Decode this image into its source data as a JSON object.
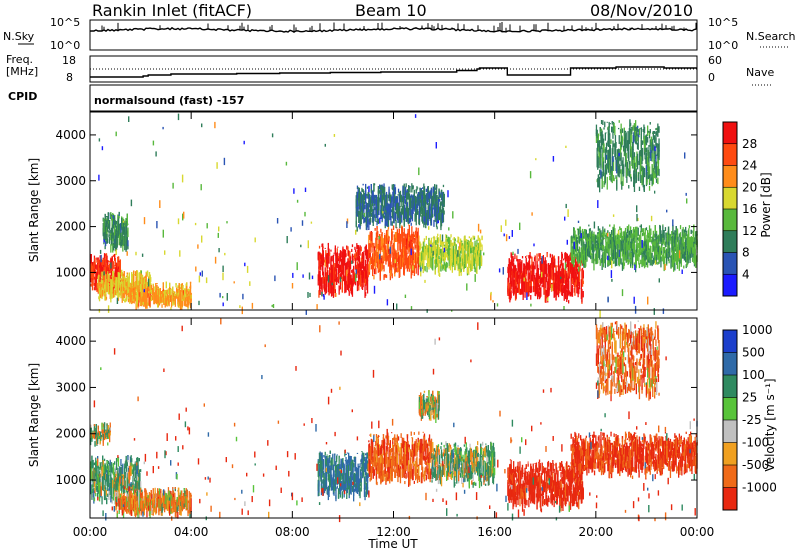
{
  "header": {
    "title": "Rankin Inlet (fitACF)",
    "beam": "Beam 10",
    "date": "08/Nov/2010"
  },
  "sky_panel": {
    "left_label": "N.Sky",
    "left_ticks": [
      "10^5",
      "10^0"
    ],
    "right_label": "N.Search",
    "right_ticks": [
      "10^5",
      "10^0"
    ]
  },
  "freq_panel": {
    "left_label_1": "Freq.",
    "left_label_2": "[MHz]",
    "left_ticks": [
      "18",
      "8"
    ],
    "right_label": "Nave",
    "right_ticks": [
      "60",
      "0"
    ]
  },
  "cpid": {
    "label": "CPID",
    "mode_text": "normalsound (fast) -157"
  },
  "xaxis": {
    "title": "Time UT",
    "ticks": [
      "00:00",
      "04:00",
      "08:00",
      "12:00",
      "16:00",
      "20:00",
      "00:00"
    ]
  },
  "power_panel": {
    "ylabel": "Slant Range [km]",
    "yticks": [
      "1000",
      "2000",
      "3000",
      "4000"
    ],
    "colorbar_title": "Power [dB]",
    "colorbar_ticks": [
      "4",
      "8",
      "12",
      "16",
      "20",
      "24",
      "28"
    ],
    "colorbar_colors": [
      "#1c1cff",
      "#2a54b4",
      "#2f7d5a",
      "#58b83c",
      "#d8d830",
      "#ff8c1a",
      "#ff4a10",
      "#f01010"
    ]
  },
  "velocity_panel": {
    "ylabel": "Slant Range [km]",
    "yticks": [
      "1000",
      "2000",
      "3000",
      "4000"
    ],
    "colorbar_title": "Velocity [m s⁻¹]",
    "colorbar_ticks": [
      "1000",
      "500",
      "100",
      "25",
      "-25",
      "-100",
      "-500",
      "-1000"
    ],
    "colorbar_colors": [
      "#1c3fcc",
      "#2f6aa8",
      "#2f8a60",
      "#58c43a",
      "#c0c0c0",
      "#f0a020",
      "#f06a18",
      "#e82810"
    ]
  },
  "chart_data": [
    {
      "type": "heatmap",
      "title": "Power [dB]",
      "xlabel": "Time UT",
      "ylabel": "Slant Range [km]",
      "x_range_hours": [
        0,
        24
      ],
      "y_range_km": [
        180,
        4500
      ],
      "color_range": [
        0,
        30
      ],
      "grid": false,
      "regions": [
        {
          "t_start": 0.0,
          "t_end": 1.2,
          "r_min": 600,
          "r_max": 1300,
          "level": 26
        },
        {
          "t_start": 0.3,
          "t_end": 2.4,
          "r_min": 400,
          "r_max": 900,
          "level": 18
        },
        {
          "t_start": 1.5,
          "t_end": 4.0,
          "r_min": 250,
          "r_max": 650,
          "level": 20
        },
        {
          "t_start": 0.5,
          "t_end": 1.5,
          "r_min": 1500,
          "r_max": 2200,
          "level": 10
        },
        {
          "t_start": 9.0,
          "t_end": 11.0,
          "r_min": 500,
          "r_max": 1500,
          "level": 28
        },
        {
          "t_start": 11.0,
          "t_end": 13.0,
          "r_min": 900,
          "r_max": 1900,
          "level": 24
        },
        {
          "t_start": 13.0,
          "t_end": 15.5,
          "r_min": 1000,
          "r_max": 1700,
          "level": 16
        },
        {
          "t_start": 16.5,
          "t_end": 19.5,
          "r_min": 400,
          "r_max": 1300,
          "level": 28
        },
        {
          "t_start": 19.0,
          "t_end": 24.0,
          "r_min": 1100,
          "r_max": 1900,
          "level": 12
        },
        {
          "t_start": 20.0,
          "t_end": 22.5,
          "r_min": 2800,
          "r_max": 4200,
          "level": 10
        },
        {
          "t_start": 10.5,
          "t_end": 14.0,
          "r_min": 2000,
          "r_max": 2800,
          "level": 8
        }
      ]
    },
    {
      "type": "heatmap",
      "title": "Velocity [m s⁻¹]",
      "xlabel": "Time UT",
      "ylabel": "Slant Range [km]",
      "x_range_hours": [
        0,
        24
      ],
      "y_range_km": [
        180,
        4500
      ],
      "color_range": [
        -1000,
        1000
      ],
      "grid": false,
      "regions": [
        {
          "t_start": 0.0,
          "t_end": 2.0,
          "r_min": 500,
          "r_max": 1400,
          "level": 100
        },
        {
          "t_start": 1.0,
          "t_end": 4.0,
          "r_min": 250,
          "r_max": 700,
          "level": -100
        },
        {
          "t_start": 0.0,
          "t_end": 0.8,
          "r_min": 1800,
          "r_max": 2100,
          "level": 0
        },
        {
          "t_start": 9.0,
          "t_end": 11.0,
          "r_min": 600,
          "r_max": 1500,
          "level": 300
        },
        {
          "t_start": 11.0,
          "t_end": 13.5,
          "r_min": 900,
          "r_max": 1900,
          "level": -200
        },
        {
          "t_start": 13.5,
          "t_end": 16.0,
          "r_min": 900,
          "r_max": 1700,
          "level": 80
        },
        {
          "t_start": 16.5,
          "t_end": 19.5,
          "r_min": 400,
          "r_max": 1300,
          "level": -400
        },
        {
          "t_start": 19.0,
          "t_end": 24.0,
          "r_min": 1100,
          "r_max": 1900,
          "level": -300
        },
        {
          "t_start": 20.0,
          "t_end": 22.5,
          "r_min": 2800,
          "r_max": 4300,
          "level": -150
        },
        {
          "t_start": 13.0,
          "t_end": 13.8,
          "r_min": 2300,
          "r_max": 2800,
          "level": 0
        }
      ]
    }
  ]
}
